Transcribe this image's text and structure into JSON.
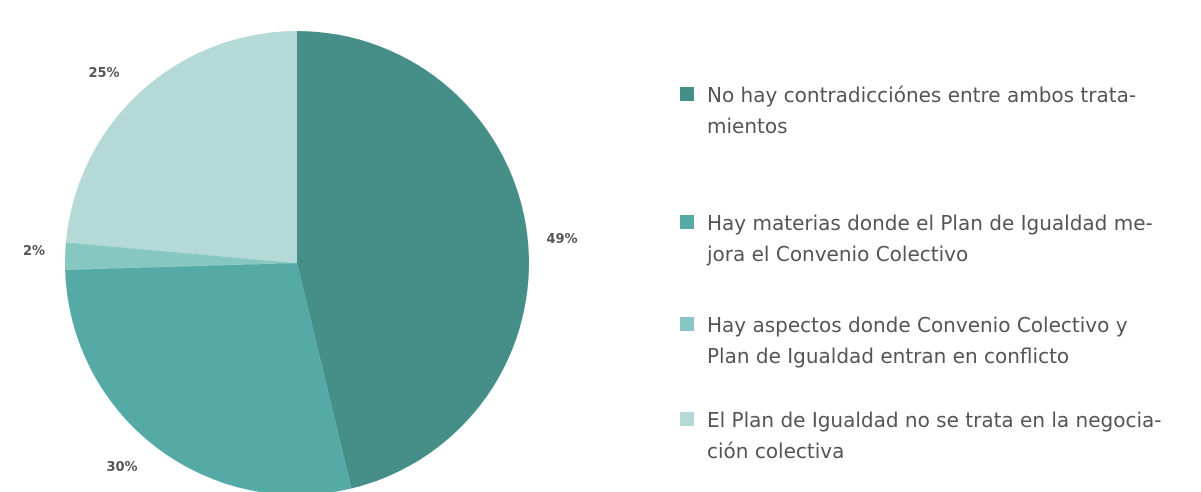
{
  "chart_data": {
    "type": "pie",
    "slices": [
      {
        "label_lines": [
          "No hay contradicciónes entre ambos trata-",
          "mientos"
        ],
        "value": 49,
        "value_label": "49%",
        "color": "#468f89"
      },
      {
        "label_lines": [
          "Hay materias donde el Plan de Igualdad me-",
          "jora el Convenio Colectivo"
        ],
        "value": 30,
        "value_label": "30%",
        "color": "#55aaa6"
      },
      {
        "label_lines": [
          "Hay aspectos donde Convenio Colectivo y",
          "Plan de Igualdad entran en conflicto"
        ],
        "value": 2,
        "value_label": "2%",
        "color": "#87c7c2"
      },
      {
        "label_lines": [
          "El Plan de Igualdad no se trata en la negocia-",
          "ción colectiva"
        ],
        "value": 25,
        "value_label": "25%",
        "color": "#b5d9d7"
      }
    ],
    "legend_position": "right"
  }
}
